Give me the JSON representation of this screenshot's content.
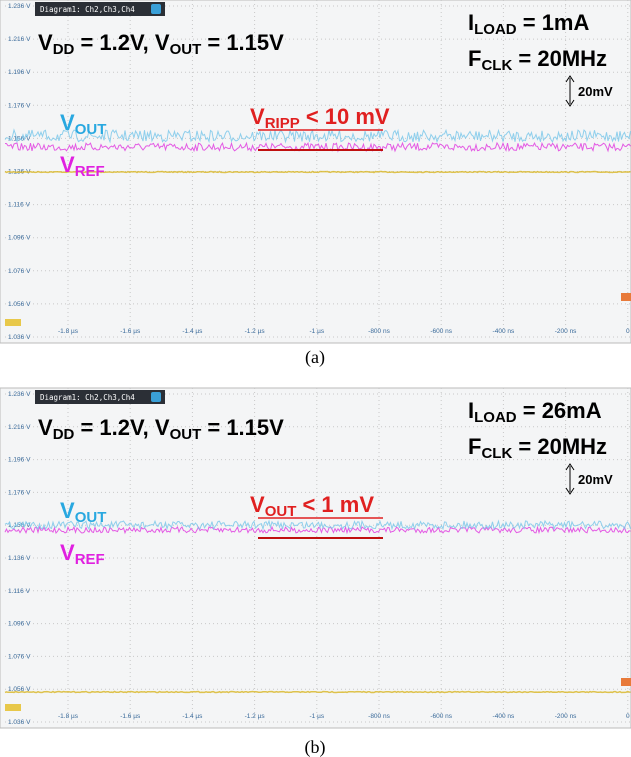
{
  "panels": [
    {
      "caption": "(a)",
      "window_title": "Diagram1: Ch2,Ch3,Ch4",
      "y_tick_labels": [
        "1.236 V",
        "1.216 V",
        "1.196 V",
        "1.176 V",
        "1.156 V",
        "1.136 V",
        "1.116 V",
        "1.096 V",
        "1.076 V",
        "1.056 V",
        "1.036 V"
      ],
      "x_tick_labels": [
        "-1.8 µs",
        "-1.6 µs",
        "-1.4 µs",
        "-1.2 µs",
        "-1 µs",
        "-800 ns",
        "-600 ns",
        "-400 ns",
        "-200 ns",
        "0"
      ],
      "supply": [
        "V",
        "DD",
        " = 1.2V, V",
        "OUT",
        " = 1.15V"
      ],
      "load": [
        "I",
        "LOAD",
        " = 1mA"
      ],
      "clock": [
        "F",
        "CLK",
        " = 20MHz"
      ],
      "scale": "20mV",
      "vout_label": [
        "V",
        "OUT"
      ],
      "vref_label": [
        "V",
        "REF"
      ],
      "ripple": [
        "V",
        "RIPP",
        " < 10 mV"
      ]
    },
    {
      "caption": "(b)",
      "window_title": "Diagram1: Ch2,Ch3,Ch4",
      "y_tick_labels": [
        "1.236 V",
        "1.216 V",
        "1.196 V",
        "1.176 V",
        "1.156 V",
        "1.136 V",
        "1.116 V",
        "1.096 V",
        "1.076 V",
        "1.056 V",
        "1.036 V"
      ],
      "x_tick_labels": [
        "-1.8 µs",
        "-1.6 µs",
        "-1.4 µs",
        "-1.2 µs",
        "-1 µs",
        "-800 ns",
        "-600 ns",
        "-400 ns",
        "-200 ns",
        "0"
      ],
      "supply": [
        "V",
        "DD",
        " = 1.2V, V",
        "OUT",
        " = 1.15V"
      ],
      "load": [
        "I",
        "LOAD",
        " = 26mA"
      ],
      "clock": [
        "F",
        "CLK",
        " = 20MHz"
      ],
      "scale": "20mV",
      "vout_label": [
        "V",
        "OUT"
      ],
      "vref_label": [
        "V",
        "REF"
      ],
      "ripple": [
        "V",
        "OUT",
        " < 1 mV"
      ]
    }
  ]
}
